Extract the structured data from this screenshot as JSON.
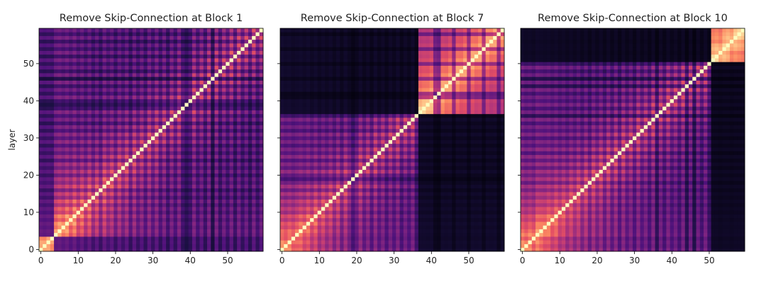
{
  "chart_data": [
    {
      "type": "heatmap",
      "title": "Remove Skip-Connection at Block 1",
      "xlabel": "",
      "ylabel": "layer",
      "n": 60,
      "xticks": [
        0,
        10,
        20,
        30,
        40,
        50
      ],
      "yticks": [
        0,
        10,
        20,
        30,
        40,
        50
      ],
      "show_ytick_labels": true,
      "colormap": "magma",
      "value_range": [
        0,
        1
      ],
      "blocks": [
        [
          0,
          3
        ],
        [
          4,
          59
        ]
      ],
      "cross_block_level": 0.35,
      "layer_weight": [
        0.95,
        0.9,
        0.95,
        0.9,
        0.9,
        0.95,
        0.85,
        0.95,
        0.8,
        0.95,
        0.75,
        0.9,
        0.7,
        0.9,
        0.65,
        0.85,
        0.6,
        0.9,
        0.7,
        0.85,
        0.6,
        0.85,
        0.65,
        0.85,
        0.55,
        0.85,
        0.6,
        0.8,
        0.55,
        0.85,
        0.6,
        0.85,
        0.55,
        0.8,
        0.5,
        0.8,
        0.55,
        0.85,
        0.5,
        0.4,
        0.5,
        0.85,
        0.55,
        0.8,
        0.5,
        0.85,
        0.35,
        0.85,
        0.5,
        0.8,
        0.55,
        0.85,
        0.5,
        0.85,
        0.55,
        0.8,
        0.5,
        0.85,
        0.55,
        0.8
      ]
    },
    {
      "type": "heatmap",
      "title": "Remove Skip-Connection at Block 7",
      "xlabel": "",
      "ylabel": "",
      "n": 60,
      "xticks": [
        0,
        10,
        20,
        30,
        40,
        50
      ],
      "yticks": [
        0,
        10,
        20,
        30,
        40,
        50
      ],
      "show_ytick_labels": false,
      "colormap": "magma",
      "value_range": [
        0,
        1
      ],
      "blocks": [
        [
          0,
          36
        ],
        [
          37,
          59
        ]
      ],
      "cross_block_level": 0.1,
      "layer_weight": [
        0.95,
        0.85,
        0.9,
        0.8,
        0.85,
        0.9,
        0.8,
        0.9,
        0.75,
        0.9,
        0.7,
        0.85,
        0.7,
        0.85,
        0.65,
        0.85,
        0.6,
        0.85,
        0.65,
        0.45,
        0.6,
        0.85,
        0.6,
        0.8,
        0.55,
        0.85,
        0.6,
        0.8,
        0.55,
        0.8,
        0.6,
        0.85,
        0.55,
        0.8,
        0.6,
        0.85,
        0.5,
        0.98,
        0.98,
        0.95,
        0.98,
        0.6,
        0.55,
        0.95,
        0.9,
        0.95,
        0.6,
        0.95,
        0.9,
        0.95,
        0.6,
        0.95,
        0.9,
        0.95,
        0.6,
        0.95,
        0.9,
        0.95,
        0.6,
        0.95
      ]
    },
    {
      "type": "heatmap",
      "title": "Remove Skip-Connection at Block 10",
      "xlabel": "",
      "ylabel": "",
      "n": 60,
      "xticks": [
        0,
        10,
        20,
        30,
        40,
        50
      ],
      "yticks": [
        0,
        10,
        20,
        30,
        40,
        50
      ],
      "show_ytick_labels": false,
      "colormap": "magma",
      "value_range": [
        0,
        1
      ],
      "blocks": [
        [
          0,
          50
        ],
        [
          51,
          59
        ]
      ],
      "cross_block_level": 0.08,
      "layer_weight": [
        0.95,
        0.85,
        0.9,
        0.8,
        0.95,
        0.9,
        0.85,
        0.9,
        0.8,
        0.9,
        0.75,
        0.85,
        0.7,
        0.85,
        0.7,
        0.85,
        0.65,
        0.85,
        0.6,
        0.85,
        0.65,
        0.85,
        0.6,
        0.85,
        0.6,
        0.85,
        0.55,
        0.85,
        0.6,
        0.8,
        0.55,
        0.85,
        0.6,
        0.8,
        0.55,
        0.85,
        0.4,
        0.8,
        0.55,
        0.85,
        0.6,
        0.8,
        0.55,
        0.85,
        0.4,
        0.8,
        0.35,
        0.8,
        0.55,
        0.85,
        0.5,
        0.99,
        0.98,
        0.9,
        0.98,
        0.98,
        0.9,
        0.98,
        0.98,
        0.98
      ]
    }
  ]
}
